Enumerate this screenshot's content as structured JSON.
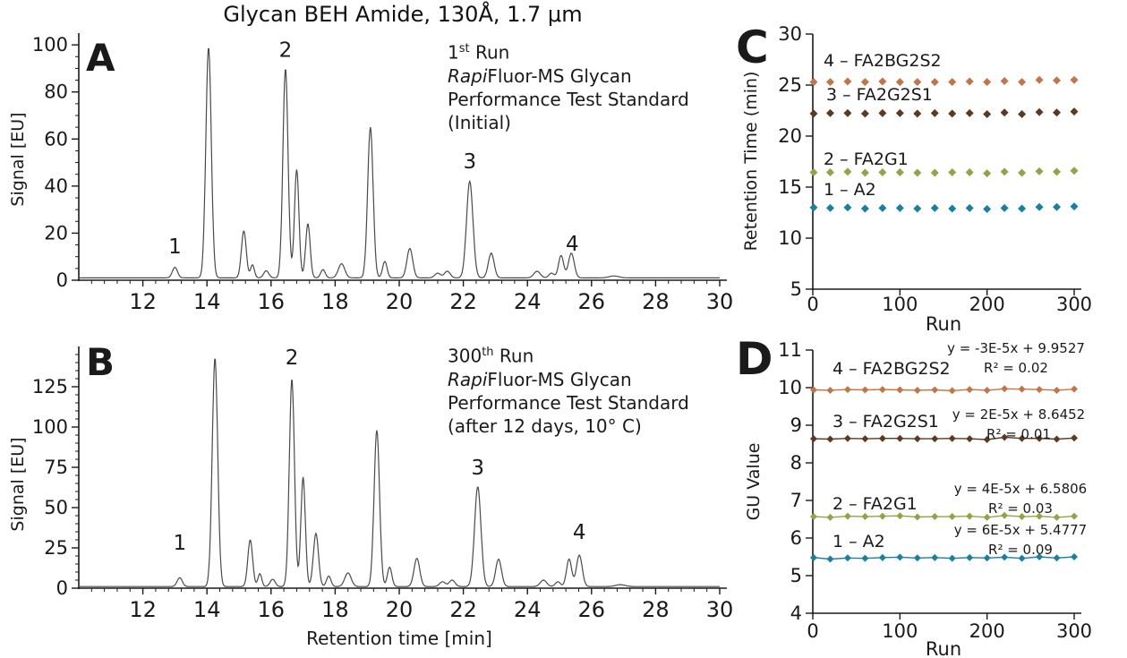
{
  "title": "Glycan BEH Amide, 130Å, 1.7 μm",
  "colors": {
    "axis": "#1a1a1a",
    "curve": "#4a4a4a",
    "annotation_brown": "#8B5A2F",
    "series1_teal": "#1A7FA0",
    "series2_olive": "#97A14A",
    "series3_brown": "#5C3A22",
    "series4_orange": "#C0764A"
  },
  "panels": {
    "A": {
      "letter": "A",
      "annotation": {
        "run_num": "1",
        "run_sup": "st",
        "run_rest": " Run",
        "brand_italic": "Rapi",
        "brand_rest": "Fluor-MS Glycan",
        "line3": "Performance Test Standard",
        "line4": "(Initial)"
      }
    },
    "B": {
      "letter": "B",
      "annotation": {
        "run_num": "300",
        "run_sup": "th",
        "run_rest": " Run",
        "brand_italic": "Rapi",
        "brand_rest": "Fluor-MS Glycan",
        "line3": "Performance Test Standard",
        "line4": "(after 12 days, 10° C)"
      }
    },
    "C": {
      "letter": "C"
    },
    "D": {
      "letter": "D"
    }
  },
  "chart_data": [
    {
      "id": "A",
      "type": "line",
      "kind": "chromatogram",
      "xlabel": "",
      "ylabel": "Signal [EU]",
      "xlim": [
        10,
        30
      ],
      "ylim": [
        0,
        105
      ],
      "x_ticks": [
        12,
        14,
        16,
        18,
        20,
        22,
        24,
        26,
        28,
        30
      ],
      "x_minor": 0.4,
      "y_ticks": [
        0,
        20,
        40,
        60,
        80,
        100
      ],
      "y_minor": 5,
      "baseline": 1,
      "peaks": [
        [
          13.0,
          4.5,
          0.08
        ],
        [
          14.05,
          98,
          0.085
        ],
        [
          15.15,
          20,
          0.075
        ],
        [
          15.42,
          5.5,
          0.06
        ],
        [
          15.85,
          3,
          0.08
        ],
        [
          16.45,
          89,
          0.08
        ],
        [
          16.8,
          46,
          0.07
        ],
        [
          17.15,
          23,
          0.07
        ],
        [
          17.62,
          3.5,
          0.07
        ],
        [
          18.2,
          6,
          0.1
        ],
        [
          19.1,
          64,
          0.085
        ],
        [
          19.55,
          7,
          0.07
        ],
        [
          20.33,
          12.5,
          0.09
        ],
        [
          21.2,
          2,
          0.09
        ],
        [
          21.5,
          2.8,
          0.09
        ],
        [
          22.2,
          41,
          0.1
        ],
        [
          22.87,
          10.5,
          0.09
        ],
        [
          24.3,
          2.8,
          0.1
        ],
        [
          24.75,
          2,
          0.08
        ],
        [
          25.05,
          9.5,
          0.08
        ],
        [
          25.37,
          10.5,
          0.09
        ],
        [
          26.7,
          0.8,
          0.15
        ]
      ],
      "peak_labels": [
        {
          "label": "1",
          "x": 13.0,
          "y": 11.5
        },
        {
          "label": "2",
          "x": 16.45,
          "y": 95
        },
        {
          "label": "3",
          "x": 22.2,
          "y": 47.5
        },
        {
          "label": "4",
          "x": 25.4,
          "y": 12.5
        }
      ]
    },
    {
      "id": "B",
      "type": "line",
      "kind": "chromatogram",
      "xlabel": "Retention time [min]",
      "ylabel": "Signal [EU]",
      "xlim": [
        10,
        30
      ],
      "ylim": [
        0,
        150
      ],
      "x_ticks": [
        12,
        14,
        16,
        18,
        20,
        22,
        24,
        26,
        28,
        30
      ],
      "x_minor": 0.4,
      "y_ticks": [
        0,
        25,
        50,
        75,
        100,
        125
      ],
      "y_minor": 5,
      "baseline": 1,
      "peaks": [
        [
          13.15,
          5.5,
          0.08
        ],
        [
          14.25,
          142,
          0.085
        ],
        [
          15.35,
          29,
          0.075
        ],
        [
          15.65,
          8,
          0.06
        ],
        [
          16.05,
          4.5,
          0.08
        ],
        [
          16.65,
          129,
          0.08
        ],
        [
          17.0,
          68,
          0.07
        ],
        [
          17.4,
          33,
          0.08
        ],
        [
          17.8,
          6.5,
          0.07
        ],
        [
          18.4,
          8.5,
          0.1
        ],
        [
          19.3,
          97,
          0.085
        ],
        [
          19.7,
          12,
          0.07
        ],
        [
          20.55,
          17.5,
          0.09
        ],
        [
          21.35,
          3,
          0.09
        ],
        [
          21.65,
          4,
          0.09
        ],
        [
          22.45,
          62,
          0.1
        ],
        [
          23.1,
          17,
          0.09
        ],
        [
          24.5,
          4,
          0.1
        ],
        [
          24.95,
          3,
          0.08
        ],
        [
          25.3,
          17,
          0.08
        ],
        [
          25.62,
          19.5,
          0.09
        ],
        [
          26.9,
          1.2,
          0.15
        ]
      ],
      "peak_labels": [
        {
          "label": "1",
          "x": 13.15,
          "y": 24
        },
        {
          "label": "2",
          "x": 16.65,
          "y": 139
        },
        {
          "label": "3",
          "x": 22.45,
          "y": 70.5
        },
        {
          "label": "4",
          "x": 25.62,
          "y": 30.5
        }
      ]
    },
    {
      "id": "C",
      "type": "scatter",
      "xlabel": "Run",
      "ylabel": "Retention Time (min)",
      "xlim": [
        0,
        300
      ],
      "ylim": [
        5,
        30
      ],
      "x_ticks": [
        0,
        100,
        200,
        300
      ],
      "y_ticks": [
        5,
        10,
        15,
        20,
        25,
        30
      ],
      "runs": [
        1,
        20,
        40,
        60,
        80,
        100,
        120,
        140,
        160,
        180,
        200,
        220,
        240,
        260,
        280,
        300
      ],
      "connect": false,
      "series": [
        {
          "name": "1 – A2",
          "color": "#1A7FA0",
          "values": [
            13.0,
            12.95,
            13.0,
            12.9,
            12.95,
            12.95,
            12.9,
            12.95,
            12.9,
            12.95,
            12.85,
            12.95,
            12.9,
            13.05,
            13.05,
            13.1
          ]
        },
        {
          "name": "2 – FA2G1",
          "color": "#97A14A",
          "values": [
            16.45,
            16.45,
            16.5,
            16.4,
            16.45,
            16.45,
            16.4,
            16.4,
            16.45,
            16.45,
            16.35,
            16.5,
            16.4,
            16.55,
            16.5,
            16.6
          ]
        },
        {
          "name": "3 – FA2G2S1",
          "color": "#5C3A22",
          "values": [
            22.2,
            22.25,
            22.25,
            22.2,
            22.25,
            22.25,
            22.2,
            22.25,
            22.2,
            22.25,
            22.15,
            22.3,
            22.15,
            22.35,
            22.3,
            22.4
          ]
        },
        {
          "name": "4 – FA2BG2S2",
          "color": "#C0764A",
          "values": [
            25.3,
            25.3,
            25.35,
            25.3,
            25.35,
            25.3,
            25.3,
            25.3,
            25.3,
            25.35,
            25.3,
            25.4,
            25.3,
            25.5,
            25.45,
            25.5
          ]
        }
      ]
    },
    {
      "id": "D",
      "type": "scatter",
      "xlabel": "Run",
      "ylabel": "GU Value",
      "xlim": [
        0,
        300
      ],
      "ylim": [
        4,
        11
      ],
      "x_ticks": [
        0,
        100,
        200,
        300
      ],
      "y_ticks": [
        4,
        5,
        6,
        7,
        8,
        9,
        10,
        11
      ],
      "runs": [
        1,
        20,
        40,
        60,
        80,
        100,
        120,
        140,
        160,
        180,
        200,
        220,
        240,
        260,
        280,
        300
      ],
      "connect": true,
      "series": [
        {
          "name": "1 – A2",
          "color": "#1A7FA0",
          "eq_line1": "y = 6E-5x + 5.4777",
          "eq_line2": "R² = 0.09",
          "values": [
            5.48,
            5.44,
            5.47,
            5.46,
            5.48,
            5.49,
            5.47,
            5.48,
            5.46,
            5.48,
            5.47,
            5.49,
            5.46,
            5.5,
            5.47,
            5.5
          ]
        },
        {
          "name": "2 – FA2G1",
          "color": "#97A14A",
          "eq_line1": "y = 4E-5x + 6.5806",
          "eq_line2": "R² = 0.03",
          "values": [
            6.57,
            6.55,
            6.58,
            6.57,
            6.58,
            6.59,
            6.56,
            6.57,
            6.57,
            6.58,
            6.55,
            6.6,
            6.57,
            6.58,
            6.55,
            6.58
          ]
        },
        {
          "name": "3 – FA2G2S1",
          "color": "#5C3A22",
          "eq_line1": "y = 2E-5x + 8.6452",
          "eq_line2": "R² = 0.01",
          "values": [
            8.64,
            8.63,
            8.65,
            8.64,
            8.65,
            8.65,
            8.64,
            8.64,
            8.65,
            8.64,
            8.62,
            8.68,
            8.65,
            8.65,
            8.63,
            8.66
          ]
        },
        {
          "name": "4 – FA2BG2S2",
          "color": "#C0764A",
          "eq_line1": "y = -3E-5x + 9.9527",
          "eq_line2": "R² = 0.02",
          "values": [
            9.94,
            9.93,
            9.95,
            9.94,
            9.95,
            9.94,
            9.93,
            9.94,
            9.92,
            9.95,
            9.93,
            9.97,
            9.96,
            9.95,
            9.93,
            9.96
          ]
        }
      ]
    }
  ]
}
